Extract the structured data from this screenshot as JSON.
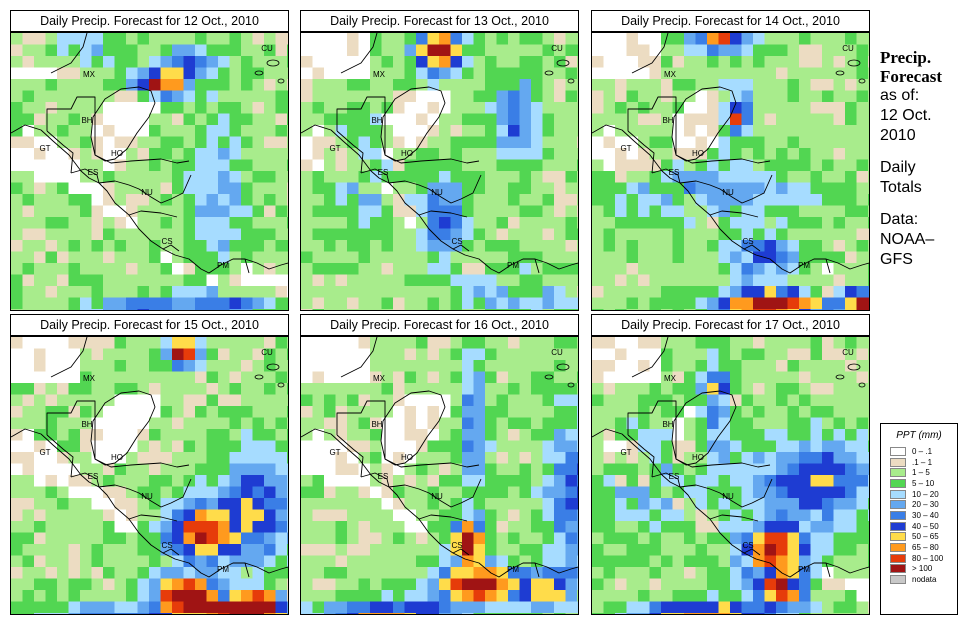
{
  "panels": [
    {
      "title": "Daily Precip. Forecast for  12 Oct., 2010",
      "seed": 11,
      "hotspots": [
        [
          0.52,
          0.18,
          0.09,
          0.05,
          2.6
        ],
        [
          0.62,
          0.1,
          0.08,
          0.06,
          1.6
        ],
        [
          0.45,
          0.97,
          0.2,
          0.05,
          1.3
        ],
        [
          0.75,
          0.95,
          0.2,
          0.05,
          1.1
        ],
        [
          0.72,
          0.55,
          0.1,
          0.3,
          0.9
        ],
        [
          0.2,
          0.05,
          0.18,
          0.08,
          1.0
        ]
      ]
    },
    {
      "title": "Daily Precip. Forecast for  13 Oct., 2010",
      "seed": 23,
      "hotspots": [
        [
          0.48,
          0.06,
          0.08,
          0.08,
          3.0
        ],
        [
          0.75,
          0.3,
          0.08,
          0.15,
          1.3
        ],
        [
          0.5,
          0.65,
          0.08,
          0.15,
          1.5
        ],
        [
          0.78,
          0.9,
          0.25,
          0.08,
          1.0
        ],
        [
          0.2,
          0.5,
          0.15,
          0.2,
          0.8
        ]
      ]
    },
    {
      "title": "Daily Precip. Forecast for  14 Oct., 2010",
      "seed": 37,
      "hotspots": [
        [
          0.45,
          0.02,
          0.1,
          0.05,
          2.4
        ],
        [
          0.5,
          0.28,
          0.05,
          0.08,
          2.5
        ],
        [
          0.62,
          0.95,
          0.2,
          0.06,
          3.0
        ],
        [
          0.96,
          0.95,
          0.08,
          0.08,
          3.2
        ],
        [
          0.6,
          0.78,
          0.12,
          0.08,
          1.6
        ],
        [
          0.4,
          0.55,
          0.35,
          0.1,
          1.0
        ]
      ]
    },
    {
      "title": "Daily Precip. Forecast for  15 Oct., 2010",
      "seed": 41,
      "hotspots": [
        [
          0.6,
          0.05,
          0.06,
          0.05,
          3.0
        ],
        [
          0.82,
          0.95,
          0.15,
          0.08,
          3.4
        ],
        [
          0.6,
          0.9,
          0.1,
          0.08,
          3.0
        ],
        [
          0.65,
          0.68,
          0.12,
          0.1,
          2.4
        ],
        [
          0.35,
          0.98,
          0.25,
          0.05,
          1.4
        ],
        [
          0.85,
          0.6,
          0.15,
          0.2,
          1.6
        ]
      ]
    },
    {
      "title": "Daily Precip. Forecast for  16 Oct., 2010",
      "seed": 53,
      "hotspots": [
        [
          0.62,
          0.86,
          0.15,
          0.06,
          3.4
        ],
        [
          0.58,
          0.72,
          0.06,
          0.08,
          3.0
        ],
        [
          0.85,
          0.88,
          0.12,
          0.06,
          2.0
        ],
        [
          0.3,
          0.97,
          0.25,
          0.05,
          2.2
        ],
        [
          0.6,
          0.3,
          0.05,
          0.3,
          1.2
        ],
        [
          0.95,
          0.55,
          0.1,
          0.3,
          1.4
        ]
      ]
    },
    {
      "title": "Daily Precip. Forecast for  17 Oct., 2010",
      "seed": 67,
      "hotspots": [
        [
          0.4,
          0.97,
          0.25,
          0.05,
          2.4
        ],
        [
          0.63,
          0.75,
          0.12,
          0.1,
          2.6
        ],
        [
          0.68,
          0.88,
          0.1,
          0.06,
          2.2
        ],
        [
          0.43,
          0.25,
          0.06,
          0.15,
          2.0
        ],
        [
          0.78,
          0.5,
          0.22,
          0.15,
          1.7
        ],
        [
          0.2,
          0.5,
          0.2,
          0.2,
          0.8
        ]
      ]
    }
  ],
  "map_labels": [
    "MX",
    "BH",
    "GT",
    "HO",
    "ES",
    "NU",
    "CS",
    "PM",
    "CU"
  ],
  "side": {
    "title_line1": "Precip.",
    "title_line2": "Forecast",
    "asof": "as of:",
    "date1": "12 Oct.",
    "date2": "2010",
    "daily1": "Daily",
    "daily2": "Totals",
    "data1": "Data:",
    "data2": "NOAA–",
    "data3": "GFS"
  },
  "legend": {
    "title": "PPT (mm)",
    "items": [
      {
        "label": "0 – .1",
        "color": "#ffffff"
      },
      {
        "label": ".1 – 1",
        "color": "#ecdcc2"
      },
      {
        "label": "1 – 5",
        "color": "#a8ec8c"
      },
      {
        "label": "5 – 10",
        "color": "#52d652"
      },
      {
        "label": "10 – 20",
        "color": "#a6dcff"
      },
      {
        "label": "20 – 30",
        "color": "#64a8f0"
      },
      {
        "label": "30 – 40",
        "color": "#3a7ee6"
      },
      {
        "label": "40 – 50",
        "color": "#1e3cd2"
      },
      {
        "label": "50 – 65",
        "color": "#ffdc4a"
      },
      {
        "label": "65 – 80",
        "color": "#ff9a1e"
      },
      {
        "label": "80 – 100",
        "color": "#e63c0a"
      },
      {
        "label": "> 100",
        "color": "#a01414"
      },
      {
        "label": "nodata",
        "color": "#c8c8c8"
      }
    ]
  }
}
